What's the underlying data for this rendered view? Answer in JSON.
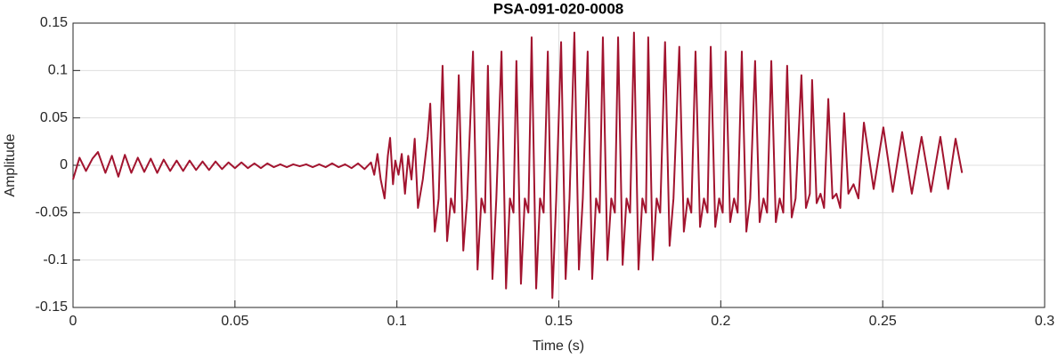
{
  "chart_data": {
    "type": "line",
    "title": "PSA-091-020-0008",
    "x_label": "Time (s)",
    "y_label": "Amplitude",
    "xlim": [
      0,
      0.3
    ],
    "xticks": [
      0,
      0.05,
      0.1,
      0.15,
      0.2,
      0.25,
      0.3
    ],
    "ylim": [
      -0.15,
      0.15
    ],
    "yticks": [
      -0.15,
      -0.1,
      -0.05,
      0,
      0.05,
      0.1,
      0.15
    ],
    "grid": true,
    "x": [
      0,
      0.002,
      0.004,
      0.006,
      0.0077,
      0.01,
      0.012,
      0.014,
      0.016,
      0.018,
      0.02,
      0.022,
      0.024,
      0.026,
      0.028,
      0.03,
      0.032,
      0.034,
      0.036,
      0.038,
      0.04,
      0.042,
      0.044,
      0.046,
      0.048,
      0.05,
      0.052,
      0.054,
      0.056,
      0.058,
      0.06,
      0.062,
      0.064,
      0.066,
      0.068,
      0.07,
      0.072,
      0.074,
      0.076,
      0.078,
      0.08,
      0.082,
      0.084,
      0.086,
      0.088,
      0.09,
      0.092,
      0.093,
      0.094,
      0.095,
      0.0962,
      0.0972,
      0.0979,
      0.0988,
      0.0995,
      0.1005,
      0.1015,
      0.1025,
      0.1035,
      0.1045,
      0.1055,
      0.1065,
      0.108,
      0.1095,
      0.1103,
      0.1117,
      0.1129,
      0.1141,
      0.1155,
      0.1167,
      0.1178,
      0.1191,
      0.1205,
      0.1217,
      0.1235,
      0.1249,
      0.1261,
      0.1272,
      0.1281,
      0.1295,
      0.1307,
      0.1323,
      0.1337,
      0.1349,
      0.136,
      0.1369,
      0.1383,
      0.1395,
      0.1406,
      0.1416,
      0.143,
      0.1442,
      0.1453,
      0.1466,
      0.148,
      0.1492,
      0.1507,
      0.1521,
      0.1533,
      0.1548,
      0.1562,
      0.1574,
      0.1589,
      0.1603,
      0.1615,
      0.1626,
      0.1636,
      0.165,
      0.1662,
      0.1673,
      0.1683,
      0.1697,
      0.1709,
      0.172,
      0.1732,
      0.1746,
      0.1758,
      0.1769,
      0.1776,
      0.179,
      0.1802,
      0.1813,
      0.1828,
      0.1842,
      0.1854,
      0.1872,
      0.1886,
      0.1898,
      0.1909,
      0.1922,
      0.1936,
      0.1948,
      0.1959,
      0.1969,
      0.1983,
      0.1995,
      0.2006,
      0.2015,
      0.2029,
      0.2041,
      0.2052,
      0.2065,
      0.2079,
      0.2091,
      0.2106,
      0.212,
      0.2132,
      0.2143,
      0.2156,
      0.217,
      0.2182,
      0.2193,
      0.2205,
      0.2219,
      0.2231,
      0.2249,
      0.2263,
      0.2275,
      0.2282,
      0.2296,
      0.2308,
      0.2319,
      0.2332,
      0.2345,
      0.2357,
      0.2369,
      0.2381,
      0.2394,
      0.241,
      0.2425,
      0.2442,
      0.2472,
      0.2502,
      0.2531,
      0.256,
      0.259,
      0.262,
      0.2649,
      0.2678,
      0.2702,
      0.2725,
      0.2745
    ],
    "series": [
      {
        "color": "#a2142f",
        "values": [
          -0.015,
          0.008,
          -0.006,
          0.007,
          0.014,
          -0.008,
          0.01,
          -0.012,
          0.011,
          -0.008,
          0.008,
          -0.007,
          0.007,
          -0.008,
          0.006,
          -0.006,
          0.005,
          -0.006,
          0.005,
          -0.005,
          0.004,
          -0.005,
          0.004,
          -0.004,
          0.003,
          -0.003,
          0.003,
          -0.003,
          0.002,
          -0.003,
          0.002,
          -0.002,
          0.001,
          -0.002,
          0.001,
          -0.001,
          0.001,
          -0.002,
          0.001,
          -0.002,
          0.002,
          -0.002,
          0.001,
          -0.003,
          0.002,
          -0.004,
          0.003,
          -0.01,
          0.012,
          -0.015,
          -0.035,
          0.01,
          0.029,
          -0.02,
          0.005,
          -0.01,
          0.012,
          -0.03,
          0.01,
          -0.015,
          0.028,
          -0.045,
          -0.015,
          0.03,
          0.065,
          -0.07,
          -0.035,
          0.105,
          -0.08,
          -0.035,
          -0.05,
          0.095,
          -0.09,
          -0.035,
          0.12,
          -0.11,
          -0.035,
          -0.05,
          0.105,
          -0.12,
          -0.035,
          0.12,
          -0.13,
          -0.035,
          -0.05,
          0.11,
          -0.125,
          -0.035,
          -0.05,
          0.135,
          -0.13,
          -0.035,
          -0.05,
          0.12,
          -0.14,
          -0.035,
          0.13,
          -0.12,
          -0.035,
          0.14,
          -0.11,
          -0.035,
          0.12,
          -0.12,
          -0.035,
          -0.05,
          0.135,
          -0.1,
          -0.035,
          -0.05,
          0.135,
          -0.105,
          -0.035,
          -0.05,
          0.14,
          -0.11,
          -0.035,
          -0.05,
          0.135,
          -0.1,
          -0.035,
          -0.05,
          0.13,
          -0.085,
          -0.035,
          0.125,
          -0.07,
          -0.035,
          -0.05,
          0.12,
          -0.065,
          -0.035,
          -0.05,
          0.125,
          -0.065,
          -0.035,
          -0.05,
          0.12,
          -0.06,
          -0.035,
          -0.05,
          0.12,
          -0.07,
          -0.035,
          0.11,
          -0.06,
          -0.035,
          -0.05,
          0.11,
          -0.06,
          -0.035,
          -0.05,
          0.105,
          -0.055,
          -0.035,
          0.095,
          -0.045,
          -0.03,
          0.09,
          -0.04,
          -0.03,
          -0.045,
          0.07,
          -0.035,
          -0.03,
          -0.045,
          0.055,
          -0.03,
          -0.02,
          -0.035,
          0.045,
          -0.025,
          0.04,
          -0.028,
          0.035,
          -0.03,
          0.03,
          -0.028,
          0.03,
          -0.025,
          0.028,
          -0.008
        ]
      }
    ]
  }
}
